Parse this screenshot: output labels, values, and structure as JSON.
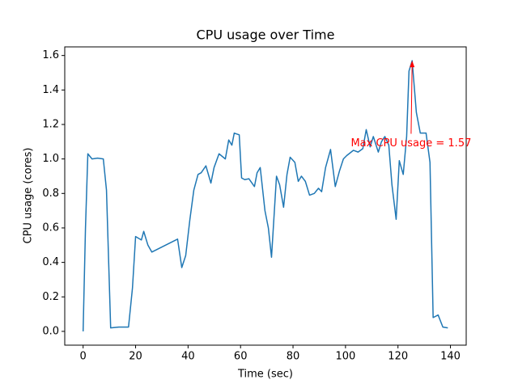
{
  "chart_data": {
    "type": "line",
    "title": "CPU usage over Time",
    "xlabel": "Time (sec)",
    "ylabel": "CPU usage (cores)",
    "x": [
      0,
      0.9,
      1.8,
      3.4,
      5.5,
      7.7,
      8.9,
      10.5,
      13.6,
      17.3,
      18.8,
      20,
      22.2,
      23.1,
      24.7,
      26.2,
      36,
      37.6,
      39.1,
      40.7,
      42.2,
      43.8,
      45,
      46.8,
      48.7,
      49.9,
      51.8,
      54.2,
      55.5,
      56.7,
      57.6,
      59.5,
      60.4,
      61.6,
      63.2,
      65.3,
      66.3,
      67.5,
      69.3,
      70.6,
      71.8,
      73.7,
      74.9,
      76.4,
      77.7,
      78.9,
      80.7,
      82,
      83.2,
      84.7,
      86.3,
      88.1,
      89.7,
      90.9,
      92.4,
      94.3,
      96.1,
      97.7,
      99.2,
      100.5,
      103,
      104.8,
      106.6,
      107.9,
      109.4,
      110.6,
      112.5,
      113.7,
      115,
      116.5,
      117.7,
      119.3,
      120.5,
      122,
      123.3,
      124.2,
      125.4,
      127,
      128.5,
      130.7,
      132.2,
      133.4,
      135.3,
      137.1,
      139
    ],
    "series": [
      {
        "name": "CPU usage",
        "color": "#1f77b4",
        "values": [
          0,
          0.6,
          1.03,
          1.0,
          1.005,
          1.0,
          0.82,
          0.02,
          0.025,
          0.025,
          0.25,
          0.55,
          0.53,
          0.58,
          0.5,
          0.46,
          0.535,
          0.37,
          0.44,
          0.65,
          0.82,
          0.91,
          0.92,
          0.96,
          0.86,
          0.95,
          1.03,
          1.0,
          1.11,
          1.08,
          1.15,
          1.14,
          0.89,
          0.88,
          0.885,
          0.84,
          0.92,
          0.95,
          0.7,
          0.6,
          0.43,
          0.9,
          0.85,
          0.72,
          0.91,
          1.01,
          0.98,
          0.87,
          0.9,
          0.87,
          0.79,
          0.8,
          0.83,
          0.81,
          0.95,
          1.055,
          0.84,
          0.93,
          1.0,
          1.02,
          1.05,
          1.04,
          1.06,
          1.17,
          1.07,
          1.13,
          1.04,
          1.1,
          1.13,
          1.08,
          0.85,
          0.65,
          0.99,
          0.91,
          1.13,
          1.51,
          1.57,
          1.27,
          1.15,
          1.15,
          0.98,
          0.08,
          0.095,
          0.025,
          0.02
        ]
      }
    ],
    "xlim": [
      -7,
      146
    ],
    "xticks": [
      0,
      20,
      40,
      60,
      80,
      100,
      120,
      140
    ],
    "ylim": [
      -0.08,
      1.65
    ],
    "yticks": [
      {
        "value": 0,
        "label": "0.0"
      },
      0.2,
      0.4,
      0.6,
      0.8,
      {
        "value": 1,
        "label": "1.0"
      },
      1.2,
      1.4,
      1.6
    ],
    "annotation": {
      "text": "Max CPU usage = 1.57",
      "color": "red",
      "xy": [
        125.4,
        1.57
      ],
      "xytext": [
        125,
        1.09
      ]
    }
  }
}
